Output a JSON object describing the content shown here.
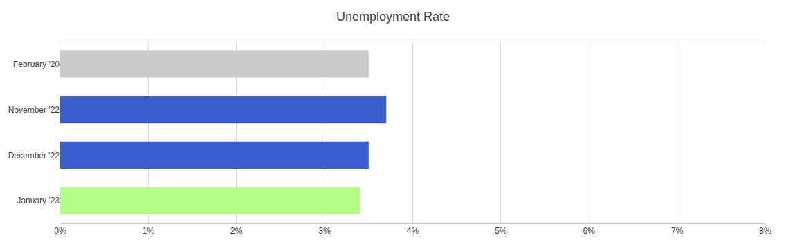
{
  "chart_data": {
    "type": "bar",
    "orientation": "horizontal",
    "title": "Unemployment Rate",
    "categories": [
      "February '20",
      "November '22",
      "December '22",
      "January '23"
    ],
    "values": [
      3.5,
      3.7,
      3.5,
      3.4
    ],
    "colors": [
      "#cccccc",
      "#3a5fcc",
      "#3a5fcc",
      "#b3ff88"
    ],
    "xlim": [
      0,
      8
    ],
    "xticks": [
      {
        "value": 0,
        "label": "0%"
      },
      {
        "value": 1,
        "label": "1%"
      },
      {
        "value": 2,
        "label": "2%"
      },
      {
        "value": 3,
        "label": "3%"
      },
      {
        "value": 4,
        "label": "4%"
      },
      {
        "value": 5,
        "label": "5%"
      },
      {
        "value": 6,
        "label": "6%"
      },
      {
        "value": 7,
        "label": "7%"
      },
      {
        "value": 8,
        "label": "8%"
      }
    ],
    "grid": true
  }
}
